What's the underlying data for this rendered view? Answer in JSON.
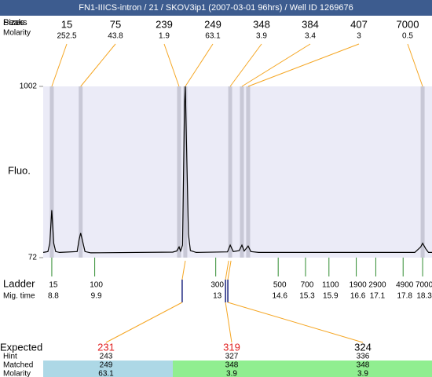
{
  "chart_data": {
    "type": "electropherogram",
    "title": "FN1-IIICS-intron / 21 / SKOV3ip1 (2007-03-01 96hrs) / Well ID 1269676",
    "peaks_label": "Peaks",
    "sizes_label": "Sizes",
    "molarity_label": "Molarity",
    "y_label": "Fluo.",
    "ladder_label": "Ladder",
    "mig_time_label": "Mig. time",
    "ylim": [
      72,
      1002
    ],
    "yticks": [
      72,
      1002
    ],
    "xlim": [
      8.58,
      18.54
    ],
    "line_color": "#000000",
    "plot_bg": "#ebebf7",
    "band_color": "#c8c8d6",
    "connector_color": "#f5a623",
    "ladder_color": "#2e8b2e",
    "marker_color": "#1a237e",
    "peaks": {
      "sizes": [
        15,
        75,
        239,
        249,
        348,
        384,
        407,
        7000
      ],
      "molarities": [
        252.5,
        43.8,
        1.9,
        63.1,
        3.9,
        3.4,
        3,
        0.5
      ],
      "times": [
        8.8,
        9.54,
        12.06,
        12.22,
        13.37,
        13.67,
        13.83,
        18.3
      ]
    },
    "ladder": {
      "sizes": [
        15,
        100,
        300,
        500,
        700,
        1100,
        1900,
        2900,
        4900,
        7000
      ],
      "times": [
        8.8,
        9.9,
        13,
        14.6,
        15.3,
        15.9,
        16.6,
        17.1,
        17.8,
        18.3
      ]
    },
    "trace": {
      "x": [
        8.58,
        8.7,
        8.75,
        8.8,
        8.85,
        8.9,
        9.0,
        9.45,
        9.5,
        9.54,
        9.58,
        9.65,
        9.8,
        11.9,
        12.0,
        12.06,
        12.1,
        12.15,
        12.2,
        12.22,
        12.25,
        12.3,
        12.35,
        12.5,
        13.3,
        13.37,
        13.45,
        13.6,
        13.67,
        13.73,
        13.83,
        13.9,
        14.1,
        18.1,
        18.25,
        18.3,
        18.38,
        18.45,
        18.54
      ],
      "y": [
        100,
        105,
        150,
        330,
        150,
        105,
        100,
        105,
        170,
        205,
        170,
        105,
        98,
        102,
        108,
        130,
        108,
        140,
        900,
        1002,
        700,
        200,
        110,
        100,
        103,
        140,
        105,
        110,
        140,
        108,
        135,
        105,
        100,
        100,
        130,
        150,
        120,
        100,
        100
      ]
    },
    "expected": {
      "labels": [
        "Expected",
        "Hint",
        "Matched",
        "Molarity"
      ],
      "times": [
        12.14,
        13.25,
        13.31
      ],
      "expected": [
        231,
        319,
        324
      ],
      "expected_colors": [
        "#e02020",
        "#e02020",
        "#000000"
      ],
      "hint": [
        243,
        327,
        336
      ],
      "matched": [
        249,
        348,
        348
      ],
      "molarity": [
        63.1,
        3.9,
        3.9
      ],
      "row_colors": [
        "#add8e6",
        "#90ee90",
        "#90ee90"
      ]
    }
  }
}
